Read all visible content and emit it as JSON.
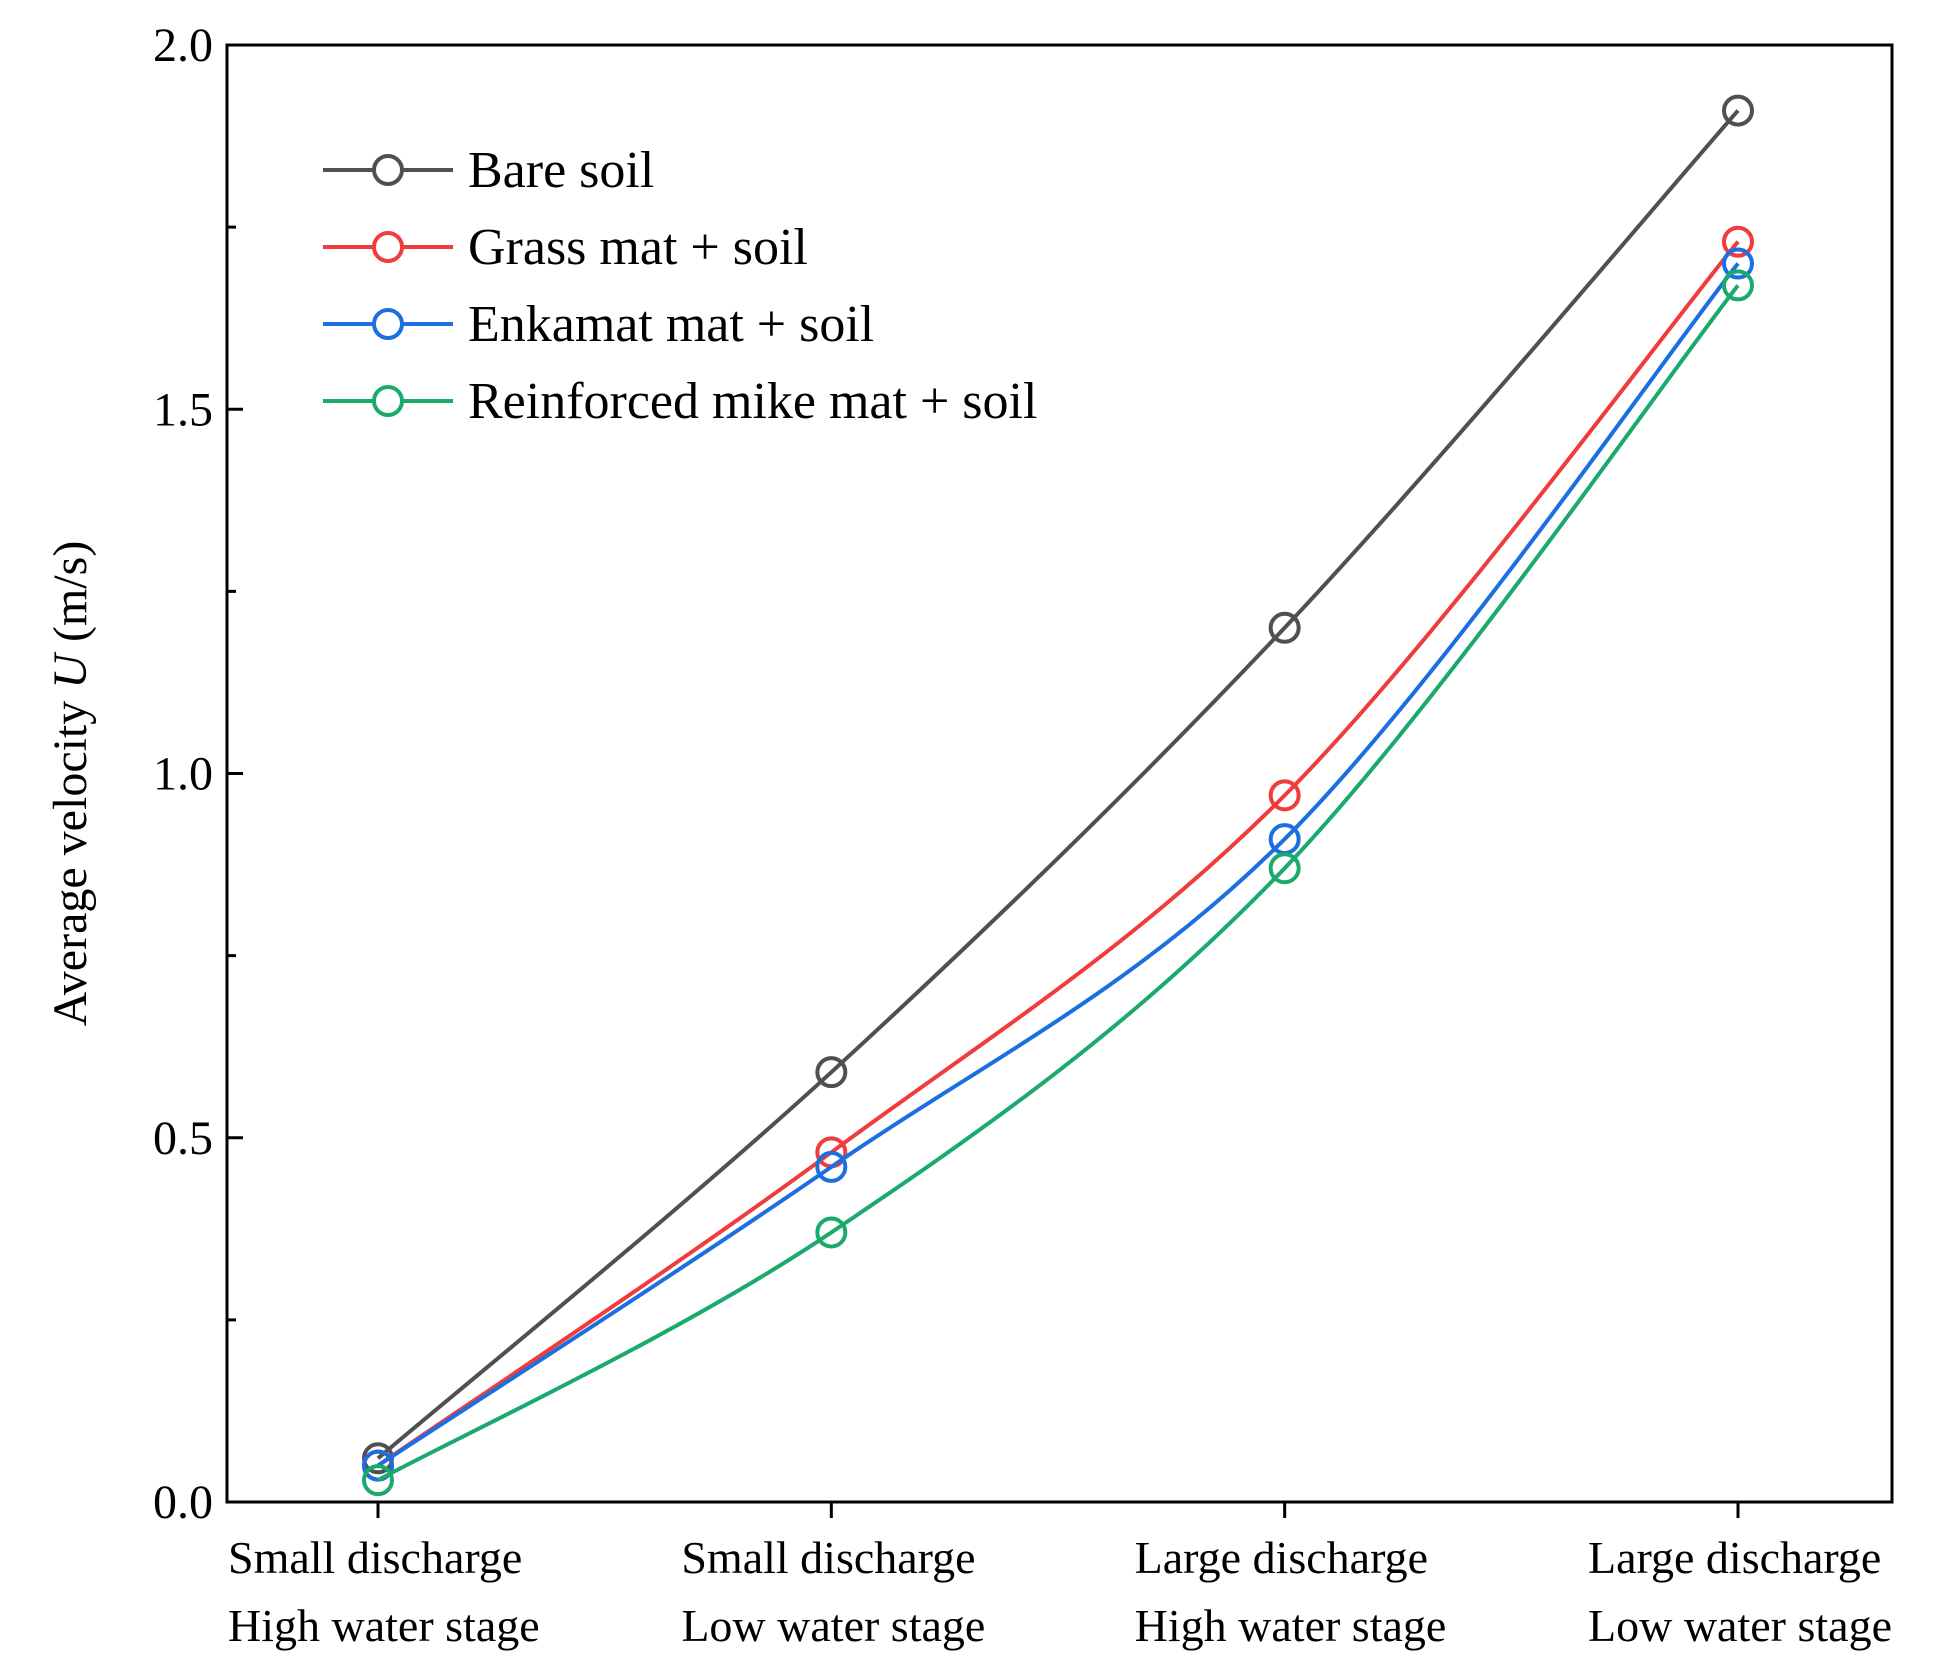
{
  "chart_data": {
    "type": "line",
    "title": "",
    "ylabel_prefix": "Average velocity ",
    "ylabel_var": "U",
    "ylabel_suffix": " (m/s)",
    "xlabel": "",
    "ylim": [
      0,
      2.0
    ],
    "yticks": [
      0.0,
      0.5,
      1.0,
      1.5,
      2.0
    ],
    "ytick_labels": [
      "0.0",
      "0.5",
      "1.0",
      "1.5",
      "2.0"
    ],
    "categories": [
      [
        "Small discharge",
        "High water stage"
      ],
      [
        "Small discharge",
        "Low water stage"
      ],
      [
        "Large discharge",
        "High water stage"
      ],
      [
        "Large discharge",
        "Low water stage"
      ]
    ],
    "legend_position": "top-left",
    "series": [
      {
        "name": "Bare soil",
        "color": "#505050",
        "values": [
          0.06,
          0.59,
          1.2,
          1.91
        ]
      },
      {
        "name": "Grass mat + soil",
        "color": "#f03c3c",
        "values": [
          0.05,
          0.48,
          0.97,
          1.73
        ]
      },
      {
        "name": "Enkamat mat + soil",
        "color": "#1c6fe0",
        "values": [
          0.05,
          0.46,
          0.91,
          1.7
        ]
      },
      {
        "name": "Reinforced mike mat + soil",
        "color": "#1aaa6c",
        "values": [
          0.03,
          0.37,
          0.87,
          1.67
        ]
      }
    ]
  }
}
